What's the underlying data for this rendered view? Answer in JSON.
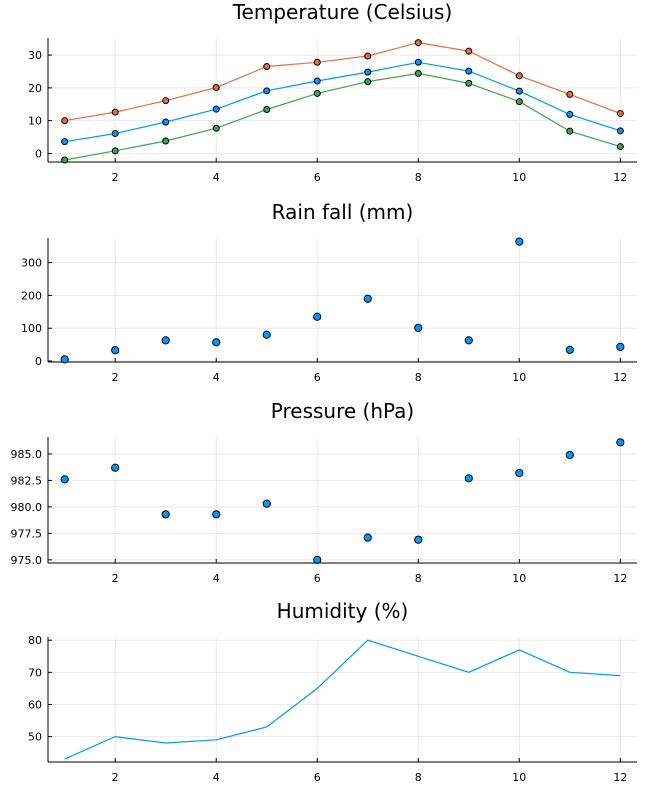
{
  "colors": {
    "blue": "#009AFA",
    "orange": "#E36F47",
    "green": "#3EA44E",
    "marker_stroke": "#000000"
  },
  "chart_data": [
    {
      "type": "line",
      "title": "Temperature (Celsius)",
      "x": [
        1,
        2,
        3,
        4,
        5,
        6,
        7,
        8,
        9,
        10,
        11,
        12
      ],
      "xlim": [
        0.67,
        12.33
      ],
      "ylim": [
        -2.6,
        35.2
      ],
      "xticks": [
        2,
        4,
        6,
        8,
        10,
        12
      ],
      "yticks": [
        0,
        10,
        20,
        30
      ],
      "ytick_labels": [
        "0",
        "10",
        "20",
        "30"
      ],
      "markers": true,
      "grid": true,
      "series": [
        {
          "color": "#E36F47",
          "values": [
            10.0,
            12.6,
            16.1,
            20.1,
            26.5,
            27.8,
            29.7,
            33.8,
            31.2,
            23.7,
            18.0,
            12.2
          ]
        },
        {
          "color": "#009AFA",
          "values": [
            3.6,
            6.1,
            9.6,
            13.5,
            19.1,
            22.1,
            24.8,
            27.8,
            25.1,
            19.0,
            11.9,
            6.9
          ]
        },
        {
          "color": "#3EA44E",
          "values": [
            -2.0,
            0.8,
            3.8,
            7.7,
            13.4,
            18.3,
            21.9,
            24.4,
            21.4,
            15.8,
            6.8,
            2.1
          ]
        }
      ]
    },
    {
      "type": "scatter",
      "title": "Rain fall (mm)",
      "x": [
        1,
        2,
        3,
        4,
        5,
        6,
        7,
        8,
        9,
        10,
        11,
        12
      ],
      "xlim": [
        0.67,
        12.33
      ],
      "ylim": [
        -3,
        375
      ],
      "xticks": [
        2,
        4,
        6,
        8,
        10,
        12
      ],
      "yticks": [
        0,
        100,
        200,
        300
      ],
      "ytick_labels": [
        "0",
        "100",
        "200",
        "300"
      ],
      "grid": true,
      "series": [
        {
          "color": "#009AFA",
          "values": [
            5,
            33,
            63,
            57,
            80,
            135,
            190,
            101,
            63,
            364,
            34,
            43
          ]
        }
      ]
    },
    {
      "type": "scatter",
      "title": "Pressure (hPa)",
      "x": [
        1,
        2,
        3,
        4,
        5,
        6,
        7,
        8,
        9,
        10,
        11,
        12
      ],
      "xlim": [
        0.67,
        12.33
      ],
      "ylim": [
        974.7,
        986.6
      ],
      "xticks": [
        2,
        4,
        6,
        8,
        10,
        12
      ],
      "yticks": [
        975.0,
        977.5,
        980.0,
        982.5,
        985.0
      ],
      "ytick_labels": [
        "975.0",
        "977.5",
        "980.0",
        "982.5",
        "985.0"
      ],
      "grid": true,
      "series": [
        {
          "color": "#009AFA",
          "values": [
            982.6,
            983.7,
            979.3,
            979.3,
            980.3,
            975.0,
            977.1,
            976.9,
            982.7,
            983.2,
            984.9,
            986.1
          ]
        }
      ]
    },
    {
      "type": "line",
      "title": "Humidity (%)",
      "x": [
        1,
        2,
        3,
        4,
        5,
        6,
        7,
        8,
        9,
        10,
        11,
        12
      ],
      "xlim": [
        0.67,
        12.33
      ],
      "ylim": [
        42.1,
        81.0
      ],
      "xticks": [
        2,
        4,
        6,
        8,
        10,
        12
      ],
      "yticks": [
        50,
        60,
        70,
        80
      ],
      "ytick_labels": [
        "50",
        "60",
        "70",
        "80"
      ],
      "markers": false,
      "grid": true,
      "series": [
        {
          "color": "#009AFA",
          "values": [
            43,
            50,
            48,
            49,
            53,
            65,
            80,
            75,
            70,
            77,
            70,
            69
          ]
        }
      ]
    }
  ]
}
